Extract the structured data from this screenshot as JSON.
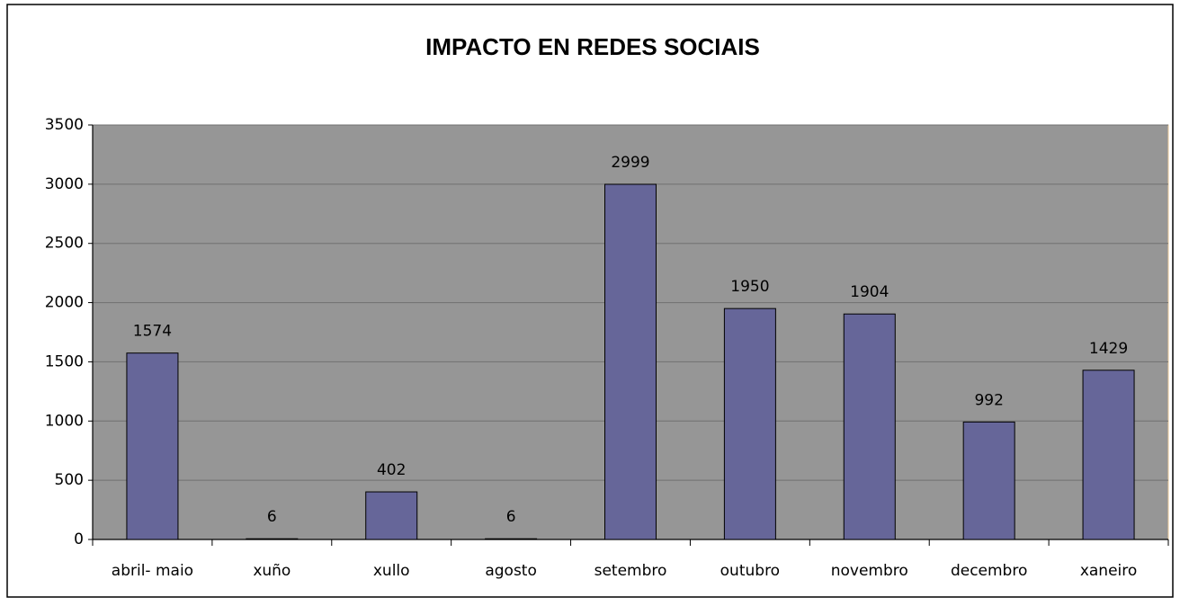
{
  "chart_data": {
    "type": "bar",
    "title": "IMPACTO EN REDES SOCIAIS",
    "categories": [
      "abril- maio",
      "xuño",
      "xullo",
      "agosto",
      "setembro",
      "outubro",
      "novembro",
      "decembro",
      "xaneiro"
    ],
    "values": [
      1574,
      6,
      402,
      6,
      2999,
      1950,
      1904,
      992,
      1429
    ],
    "color": "#666699",
    "ylim": [
      0,
      3500
    ],
    "yticks": [
      0,
      500,
      1000,
      1500,
      2000,
      2500,
      3000,
      3500
    ],
    "grid": true
  }
}
